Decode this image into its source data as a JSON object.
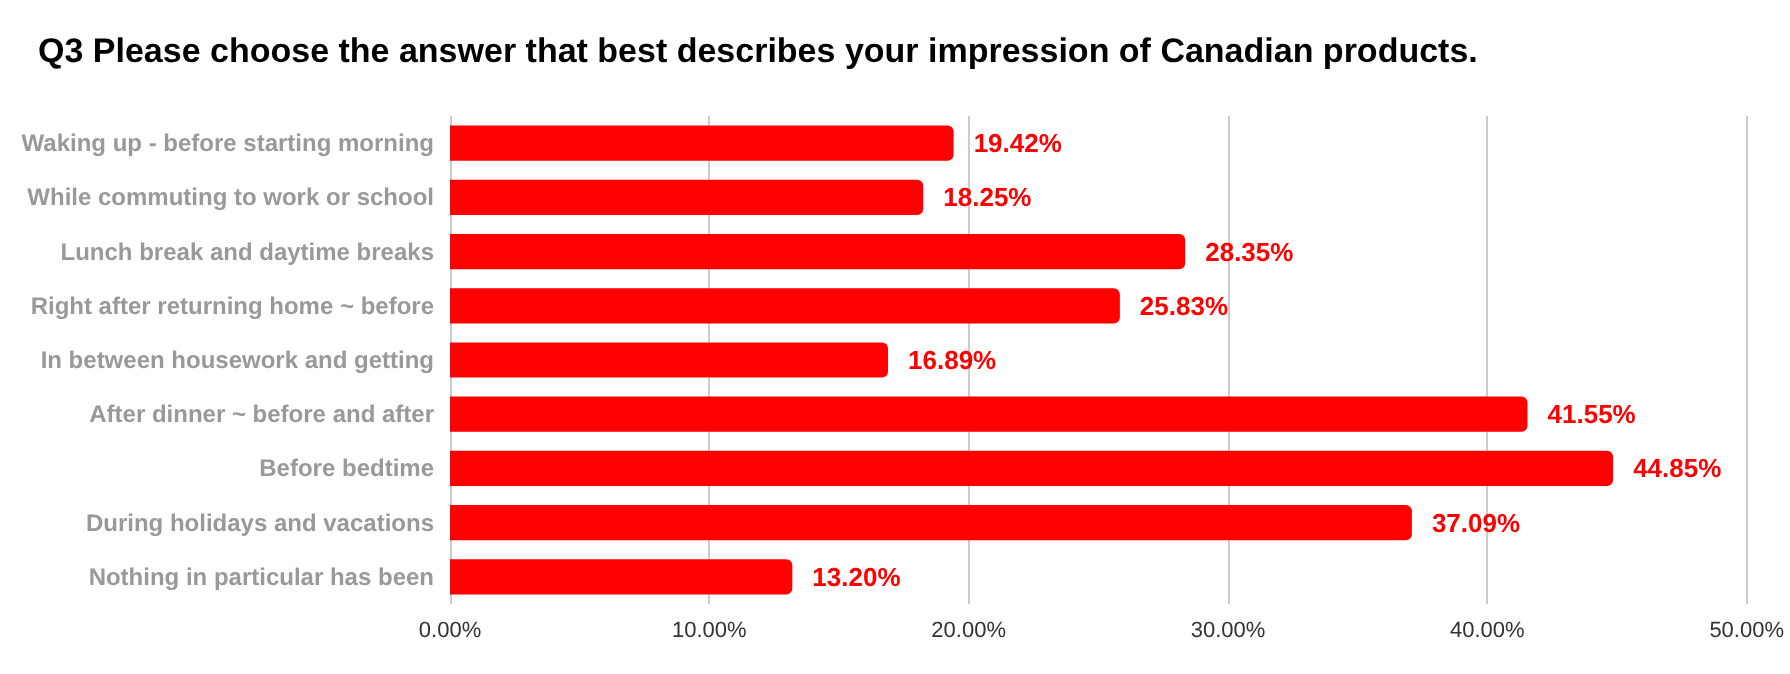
{
  "chart_data": {
    "type": "bar",
    "orientation": "horizontal",
    "title": "Q3 Please choose the answer that best describes your impression of Canadian products.",
    "categories": [
      "Waking up - before starting morning",
      "While commuting to work or school",
      "Lunch break and daytime breaks",
      "Right after returning home ~ before",
      "In between housework and getting",
      "After dinner ~ before and after",
      "Before bedtime",
      "During holidays and vacations",
      "Nothing in particular has been"
    ],
    "values": [
      19.42,
      18.25,
      28.35,
      25.83,
      16.89,
      41.55,
      44.85,
      37.09,
      13.2
    ],
    "value_labels": [
      "19.42%",
      "18.25%",
      "28.35%",
      "25.83%",
      "16.89%",
      "41.55%",
      "44.85%",
      "37.09%",
      "13.20%"
    ],
    "color": "#ff0000",
    "xlim": [
      0,
      50
    ],
    "xticks": [
      {
        "value": 0,
        "label": "0.00%"
      },
      {
        "value": 10,
        "label": "10.00%"
      },
      {
        "value": 20,
        "label": "20.00%"
      },
      {
        "value": 30,
        "label": "30.00%"
      },
      {
        "value": 40,
        "label": "40.00%"
      },
      {
        "value": 50,
        "label": "50.00%"
      }
    ],
    "grid": "x"
  }
}
